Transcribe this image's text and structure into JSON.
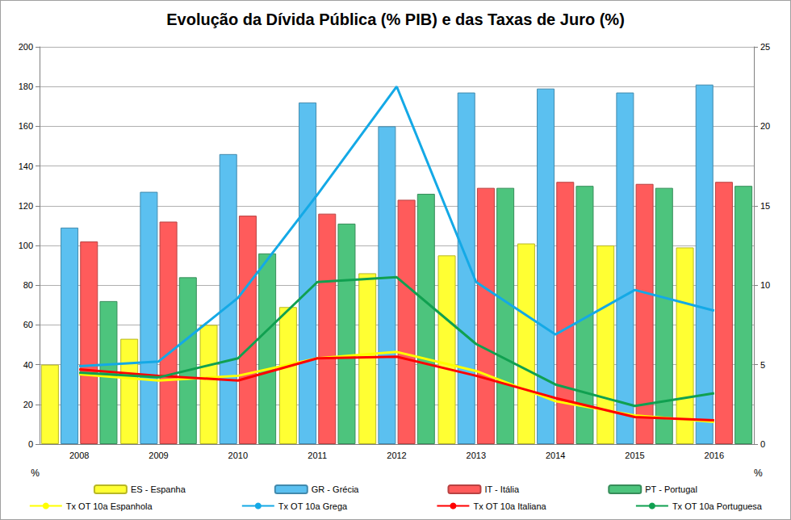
{
  "chart_data": {
    "type": "bar",
    "title": "Evolução da Dívida Pública (% PIB) e das Taxas de Juro (%)",
    "ylabel": "%",
    "y2label": "%",
    "categories": [
      "2008",
      "2009",
      "2010",
      "2011",
      "2012",
      "2013",
      "2014",
      "2015",
      "2016"
    ],
    "ylim": [
      0,
      200
    ],
    "yticks": [
      0,
      20,
      40,
      60,
      80,
      100,
      120,
      140,
      160,
      180,
      200
    ],
    "y2lim": [
      0,
      25
    ],
    "y2ticks": [
      0,
      5,
      10,
      15,
      20,
      25
    ],
    "grid": true,
    "legend": "bottom",
    "series": [
      {
        "name": "ES - Espanha",
        "type": "bar",
        "color": "#ffff33",
        "values": [
          40,
          53,
          60,
          69,
          86,
          95,
          101,
          100,
          99
        ]
      },
      {
        "name": "GR - Grécia",
        "type": "bar",
        "color": "#5bc0f0",
        "values": [
          109,
          127,
          146,
          172,
          160,
          177,
          179,
          177,
          181
        ]
      },
      {
        "name": "IT - Itália",
        "type": "bar",
        "color": "#ff5b5b",
        "values": [
          102,
          112,
          115,
          116,
          123,
          129,
          132,
          131,
          132
        ]
      },
      {
        "name": "PT - Portugal",
        "type": "bar",
        "color": "#4dc47d",
        "values": [
          72,
          84,
          96,
          111,
          126,
          129,
          130,
          129,
          130
        ]
      },
      {
        "name": "Tx OT 10a Espanhola",
        "type": "line",
        "axis": "y2",
        "color": "#ffff00",
        "values": [
          4.4,
          4.0,
          4.3,
          5.4,
          5.8,
          4.6,
          2.7,
          1.8,
          1.4
        ]
      },
      {
        "name": "Tx OT 10a Grega",
        "type": "line",
        "axis": "y2",
        "color": "#14a9e6",
        "values": [
          4.9,
          5.2,
          9.2,
          15.7,
          22.5,
          10.2,
          6.9,
          9.7,
          8.4
        ]
      },
      {
        "name": "Tx OT 10a Italiana",
        "type": "line",
        "axis": "y2",
        "color": "#ff0000",
        "values": [
          4.7,
          4.3,
          4.0,
          5.4,
          5.5,
          4.3,
          2.9,
          1.7,
          1.5
        ]
      },
      {
        "name": "Tx OT 10a Portuguesa",
        "type": "line",
        "axis": "y2",
        "color": "#10a050",
        "values": [
          4.5,
          4.2,
          5.4,
          10.2,
          10.5,
          6.3,
          3.75,
          2.4,
          3.2
        ]
      }
    ]
  }
}
